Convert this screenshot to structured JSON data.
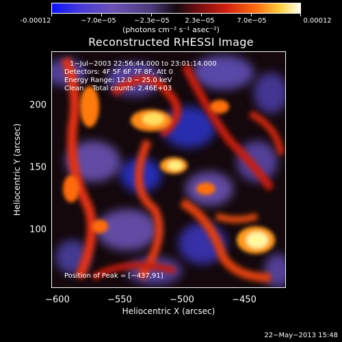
{
  "colorbar": {
    "tick_labels": [
      "-0.00012",
      "−7.0e−05",
      "−2.3e−05",
      "2.3e−05",
      "7.0e−05",
      "0.00012"
    ],
    "unit_label": "(photons cm⁻² s⁻¹ asec⁻²)",
    "colors": [
      "#0a14ff",
      "#4a3a7a",
      "#140a10",
      "#d02010",
      "#ffd040",
      "#fffff0"
    ]
  },
  "title": "Reconstructed RHESSI Image",
  "info": {
    "line1": "1−Jul−2003 22:56:44.000 to 23:01:14.000",
    "line2": "Detectors: 4F 5F 6F 7F 8F, Att 0",
    "line3": "Energy Range: 12.0 − 25.0 keV",
    "line4": "Clean    Total counts: 2.46E+03",
    "peak": "Position of Peak = [−437,91]"
  },
  "chart_data": {
    "type": "heatmap",
    "title": "Reconstructed RHESSI Image",
    "xlabel": "Heliocentric X (arcsec)",
    "ylabel": "Heliocentric Y (arcsec)",
    "xlim": [
      -605,
      -415
    ],
    "ylim": [
      55,
      245
    ],
    "x_ticks": [
      "−600",
      "−550",
      "−500",
      "−450"
    ],
    "y_ticks": [
      "100",
      "150",
      "200"
    ],
    "peak_position": [
      -437,
      91
    ]
  },
  "footer": "22−May−2013 15:48"
}
